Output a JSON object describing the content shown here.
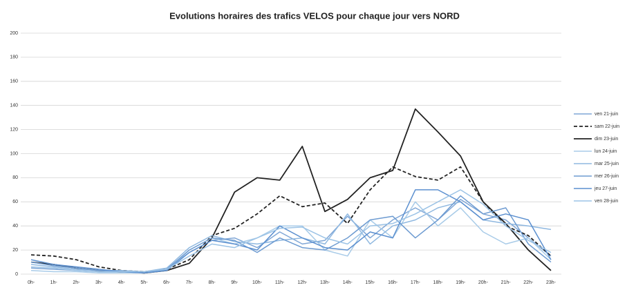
{
  "chart_data": {
    "type": "line",
    "title": "Evolutions horaires des trafics VELOS pour chaque jour vers NORD",
    "categories": [
      "0h-",
      "1h-",
      "2h-",
      "3h-",
      "4h-",
      "5h-",
      "6h-",
      "7h-",
      "8h-",
      "9h-",
      "10h-",
      "11h-",
      "12h-",
      "13h-",
      "14h-",
      "15h-",
      "16h-",
      "17h-",
      "18h-",
      "19h-",
      "20h-",
      "21h-",
      "22h-",
      "23h-"
    ],
    "series": [
      {
        "name": "ven 21-juin",
        "color": "#7fa6d6",
        "dashed": false,
        "width": 1.5,
        "values": [
          5,
          4,
          3,
          2,
          2,
          1,
          4,
          18,
          28,
          30,
          22,
          35,
          25,
          28,
          48,
          30,
          45,
          55,
          45,
          62,
          50,
          45,
          30,
          15
        ]
      },
      {
        "name": "sam 22-juin",
        "color": "#222222",
        "dashed": true,
        "width": 1.8,
        "values": [
          16,
          15,
          12,
          6,
          3,
          2,
          4,
          12,
          32,
          38,
          50,
          65,
          56,
          59,
          42,
          70,
          89,
          81,
          78,
          89,
          60,
          40,
          32,
          15
        ]
      },
      {
        "name": "dim 23-juin",
        "color": "#222222",
        "dashed": false,
        "width": 1.8,
        "values": [
          10,
          8,
          5,
          3,
          2,
          1,
          3,
          9,
          30,
          68,
          80,
          78,
          106,
          52,
          62,
          80,
          86,
          137,
          118,
          98,
          60,
          42,
          20,
          3
        ]
      },
      {
        "name": "lun 24-juin",
        "color": "#a8cbe8",
        "dashed": false,
        "width": 1.5,
        "values": [
          3,
          2,
          2,
          1,
          1,
          1,
          3,
          20,
          30,
          25,
          30,
          40,
          40,
          20,
          15,
          45,
          30,
          60,
          40,
          55,
          35,
          25,
          30,
          12
        ]
      },
      {
        "name": "mar 25-juin",
        "color": "#8fb8e0",
        "dashed": false,
        "width": 1.5,
        "values": [
          8,
          6,
          4,
          3,
          3,
          2,
          5,
          22,
          32,
          27,
          25,
          28,
          30,
          25,
          50,
          25,
          40,
          45,
          55,
          60,
          45,
          42,
          40,
          37
        ]
      },
      {
        "name": "mer 26-juin",
        "color": "#6d9bd1",
        "dashed": false,
        "width": 1.5,
        "values": [
          10,
          7,
          5,
          3,
          2,
          1,
          4,
          20,
          30,
          28,
          18,
          30,
          22,
          20,
          30,
          45,
          48,
          30,
          45,
          65,
          50,
          55,
          25,
          10
        ]
      },
      {
        "name": "jeu 27-juin",
        "color": "#5b8fcf",
        "dashed": false,
        "width": 1.5,
        "values": [
          12,
          8,
          6,
          4,
          2,
          1,
          3,
          18,
          28,
          25,
          20,
          40,
          30,
          22,
          20,
          35,
          30,
          70,
          70,
          60,
          45,
          50,
          45,
          12
        ]
      },
      {
        "name": "ven 28-juin",
        "color": "#9cc3e6",
        "dashed": false,
        "width": 1.5,
        "values": [
          6,
          5,
          3,
          2,
          2,
          2,
          4,
          15,
          25,
          22,
          30,
          38,
          39,
          30,
          25,
          40,
          42,
          50,
          60,
          70,
          58,
          40,
          28,
          18
        ]
      }
    ],
    "ylim": [
      0,
      200
    ],
    "yticks": [
      0,
      20,
      40,
      60,
      80,
      100,
      120,
      140,
      160,
      180,
      200
    ],
    "grid": true,
    "legend": "right"
  }
}
